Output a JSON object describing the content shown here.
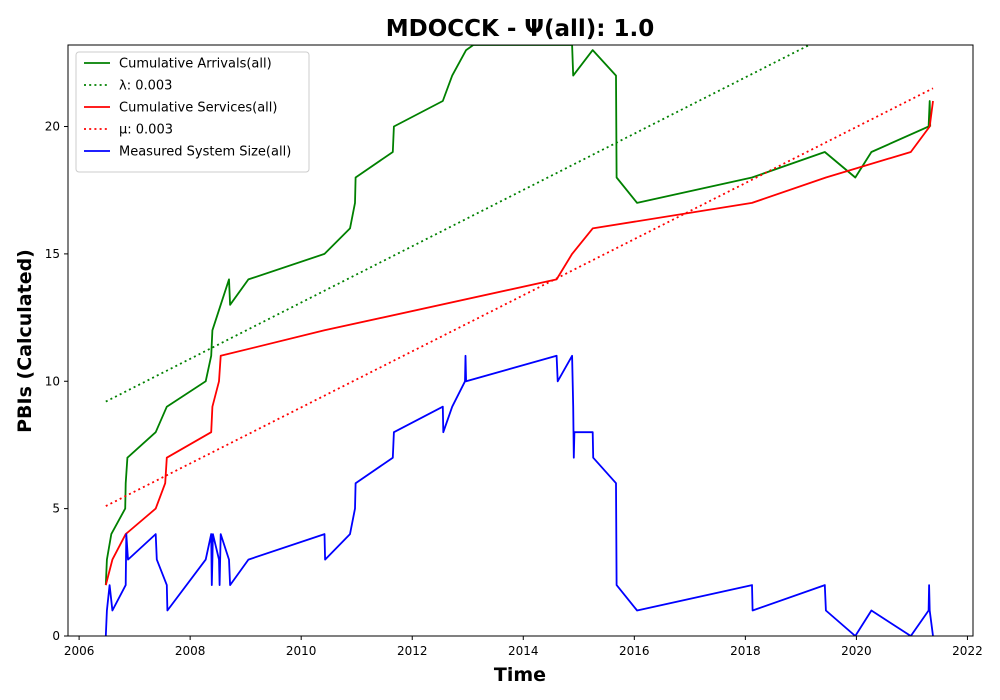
{
  "chart_data": {
    "type": "line",
    "title": "MDOCCK -  Ψ(all): 1.0",
    "xlabel": "Time",
    "ylabel": "PBIs (Calculated)",
    "xlim": [
      2005.8,
      2022.1
    ],
    "ylim": [
      0,
      23.2
    ],
    "xticks": [
      2006,
      2008,
      2010,
      2012,
      2014,
      2016,
      2018,
      2020,
      2022
    ],
    "yticks": [
      0,
      5,
      10,
      15,
      20
    ],
    "legend_position": "upper-left",
    "grid": false,
    "series": [
      {
        "name": "Cumulative Arrivals(all)",
        "style": "solid",
        "color": "#008000",
        "x": [
          2006.48,
          2006.5,
          2006.58,
          2006.83,
          2006.84,
          2006.87,
          2007.38,
          2007.58,
          2008.28,
          2008.38,
          2008.4,
          2008.55,
          2008.7,
          2008.72,
          2009.05,
          2010.42,
          2010.88,
          2010.97,
          2010.98,
          2011.65,
          2011.67,
          2012.55,
          2012.72,
          2012.97,
          2013.1,
          2014.88,
          2014.9,
          2015.25,
          2015.67,
          2015.68,
          2016.05,
          2018.12,
          2019.43,
          2019.98,
          2020.27,
          2021.3,
          2021.32,
          2021.33
        ],
        "values": [
          2,
          3,
          4,
          5,
          6,
          7,
          8,
          9,
          10,
          11,
          12,
          13,
          14,
          13,
          14,
          15,
          16,
          17,
          18,
          19,
          20,
          21,
          22,
          23,
          23.2,
          23.2,
          22,
          23,
          22,
          18,
          17,
          18,
          19,
          18,
          19,
          20,
          21,
          20
        ]
      },
      {
        "name": "λ: 0.003",
        "style": "dotted",
        "color": "#008000",
        "x": [
          2006.48,
          2019.15
        ],
        "values": [
          9.2,
          23.2
        ]
      },
      {
        "name": "Cumulative Services(all)",
        "style": "solid",
        "color": "#ff0000",
        "x": [
          2006.48,
          2006.6,
          2006.84,
          2007.38,
          2007.55,
          2007.58,
          2008.38,
          2008.4,
          2008.52,
          2008.55,
          2010.42,
          2014.6,
          2014.88,
          2015.25,
          2018.12,
          2019.45,
          2020.98,
          2021.32,
          2021.38
        ],
        "values": [
          2,
          3,
          4,
          5,
          6,
          7,
          8,
          9,
          10,
          11,
          12,
          14,
          15,
          16,
          17,
          18,
          19,
          20,
          21
        ]
      },
      {
        "name": "μ: 0.003",
        "style": "dotted",
        "color": "#ff0000",
        "x": [
          2006.48,
          2021.38
        ],
        "values": [
          5.1,
          21.5
        ]
      },
      {
        "name": "Measured System Size(all)",
        "style": "solid",
        "color": "#0000ff",
        "x": [
          2006.48,
          2006.5,
          2006.55,
          2006.6,
          2006.84,
          2006.85,
          2006.88,
          2007.38,
          2007.4,
          2007.58,
          2007.59,
          2008.28,
          2008.38,
          2008.39,
          2008.4,
          2008.41,
          2008.52,
          2008.53,
          2008.55,
          2008.7,
          2008.72,
          2009.05,
          2010.42,
          2010.43,
          2010.88,
          2010.97,
          2010.98,
          2011.65,
          2011.67,
          2012.55,
          2012.56,
          2012.72,
          2012.95,
          2012.96,
          2012.97,
          2014.6,
          2014.62,
          2014.88,
          2014.9,
          2014.91,
          2014.92,
          2015.25,
          2015.26,
          2015.67,
          2015.68,
          2016.05,
          2018.12,
          2018.13,
          2019.43,
          2019.45,
          2019.98,
          2020.27,
          2020.98,
          2021.3,
          2021.31,
          2021.32,
          2021.38
        ],
        "values": [
          0,
          1,
          2,
          1,
          2,
          4,
          3,
          4,
          3,
          2,
          1,
          3,
          4,
          2,
          3,
          4,
          3,
          2,
          4,
          3,
          2,
          3,
          4,
          3,
          4,
          5,
          6,
          7,
          8,
          9,
          8,
          9,
          10,
          11,
          10,
          11,
          10,
          11,
          9,
          7,
          8,
          8,
          7,
          6,
          2,
          1,
          2,
          1,
          2,
          1,
          0,
          1,
          0,
          1,
          2,
          1,
          0
        ]
      }
    ]
  }
}
